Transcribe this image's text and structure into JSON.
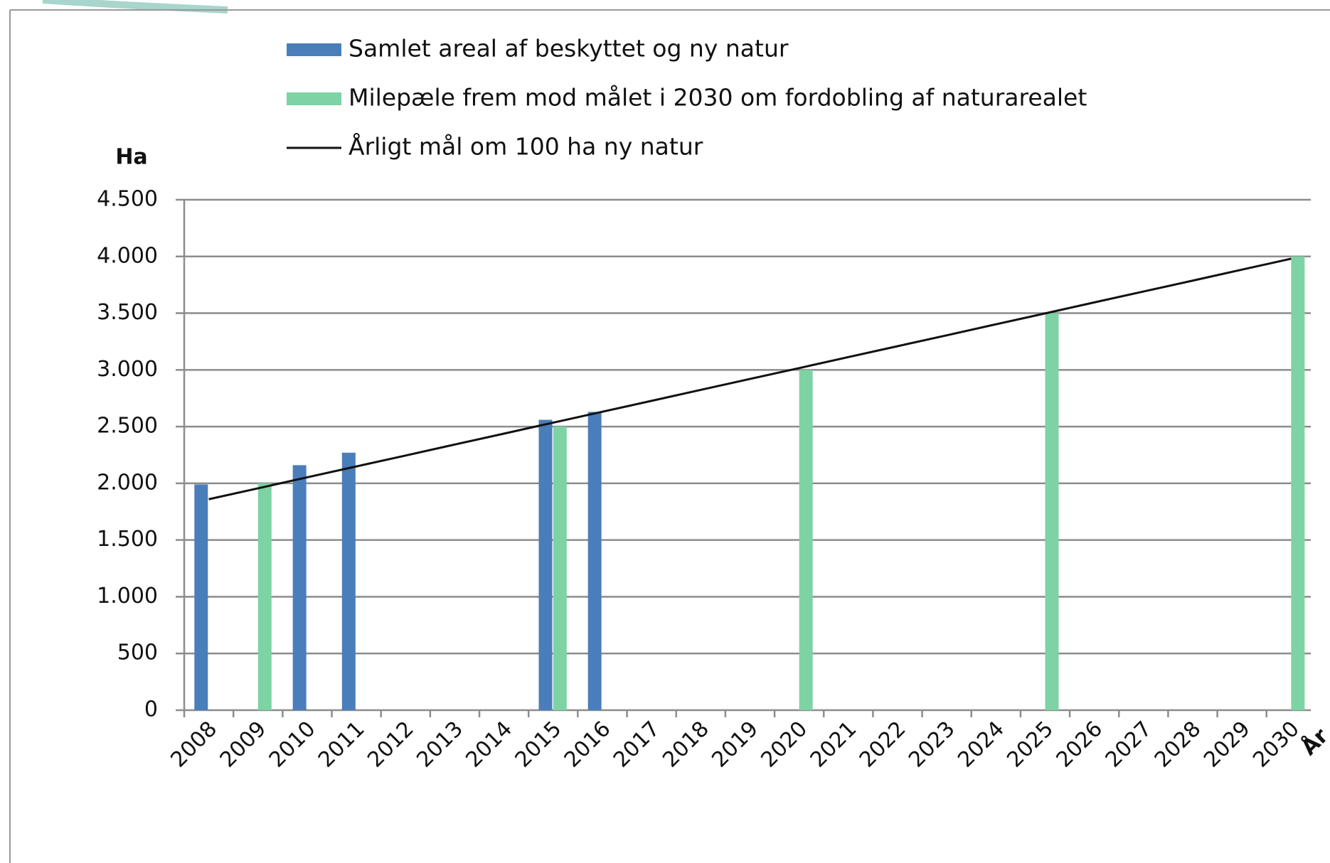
{
  "chart_data": {
    "type": "bar",
    "y_label": "Ha",
    "x_label": "År",
    "categories": [
      "2008",
      "2009",
      "2010",
      "2011",
      "2012",
      "2013",
      "2014",
      "2015",
      "2016",
      "2017",
      "2018",
      "2019",
      "2020",
      "2021",
      "2022",
      "2023",
      "2024",
      "2025",
      "2026",
      "2027",
      "2028",
      "2029",
      "2030"
    ],
    "series": [
      {
        "name": "Samlet areal af beskyttet og ny natur",
        "color": "#4a7ebb",
        "values": [
          1990,
          null,
          2160,
          2270,
          null,
          null,
          null,
          2560,
          2630,
          null,
          null,
          null,
          null,
          null,
          null,
          null,
          null,
          null,
          null,
          null,
          null,
          null,
          null
        ]
      },
      {
        "name": "Milepæle frem mod målet i 2030 om fordobling af naturarealet",
        "color": "#7dd3a3",
        "values": [
          null,
          2000,
          null,
          null,
          null,
          null,
          null,
          2500,
          null,
          null,
          null,
          null,
          3000,
          null,
          null,
          null,
          null,
          3500,
          null,
          null,
          null,
          null,
          4000
        ]
      },
      {
        "name": "Årligt mål om 100 ha ny natur",
        "color": "#111111",
        "type": "line",
        "values": [
          1860,
          1956,
          2053,
          2149,
          2245,
          2342,
          2438,
          2535,
          2631,
          2727,
          2824,
          2920,
          3016,
          3113,
          3209,
          3305,
          3402,
          3498,
          3595,
          3691,
          3787,
          3884,
          3980
        ]
      }
    ],
    "ylim": [
      0,
      4500
    ],
    "yticks": [
      0,
      500,
      {
        "value": 1000,
        "label": "1.000"
      },
      {
        "value": 1500,
        "label": "1.500"
      },
      {
        "value": 2000,
        "label": "2.000"
      },
      {
        "value": 2500,
        "label": "2.500"
      },
      {
        "value": 3000,
        "label": "3.000"
      },
      {
        "value": 3500,
        "label": "3.500"
      },
      {
        "value": 4000,
        "label": "4.000"
      },
      {
        "value": 4500,
        "label": "4.500"
      }
    ],
    "grid": true
  }
}
